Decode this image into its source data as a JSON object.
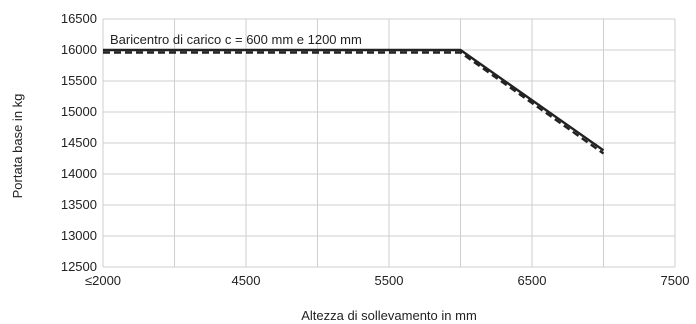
{
  "chart_data": {
    "type": "line",
    "annotation": "Baricentro di carico c = 600 mm e 1200 mm",
    "xlabel": "Altezza di sollevamento in mm",
    "ylabel": "Portata base in kg",
    "x_ticks": [
      {
        "label": "≤2000",
        "value": 3500
      },
      {
        "label": "4500",
        "value": 4500
      },
      {
        "label": "5500",
        "value": 5500
      },
      {
        "label": "6500",
        "value": 6500
      },
      {
        "label": "7500",
        "value": 7500
      }
    ],
    "y_ticks": [
      "16500",
      "16000",
      "15500",
      "15000",
      "14500",
      "14000",
      "13500",
      "13000",
      "12500"
    ],
    "xlim": [
      3500,
      7500
    ],
    "ylim": [
      12500,
      16500
    ],
    "grid": true,
    "series": [
      {
        "style": "solid",
        "color": "#222222",
        "points": [
          [
            3500,
            16000
          ],
          [
            6000,
            16000
          ],
          [
            7000,
            14380
          ]
        ]
      },
      {
        "style": "dashed",
        "color": "#222222",
        "points": [
          [
            3500,
            15960
          ],
          [
            6000,
            15960
          ],
          [
            7000,
            14330
          ]
        ]
      }
    ]
  }
}
